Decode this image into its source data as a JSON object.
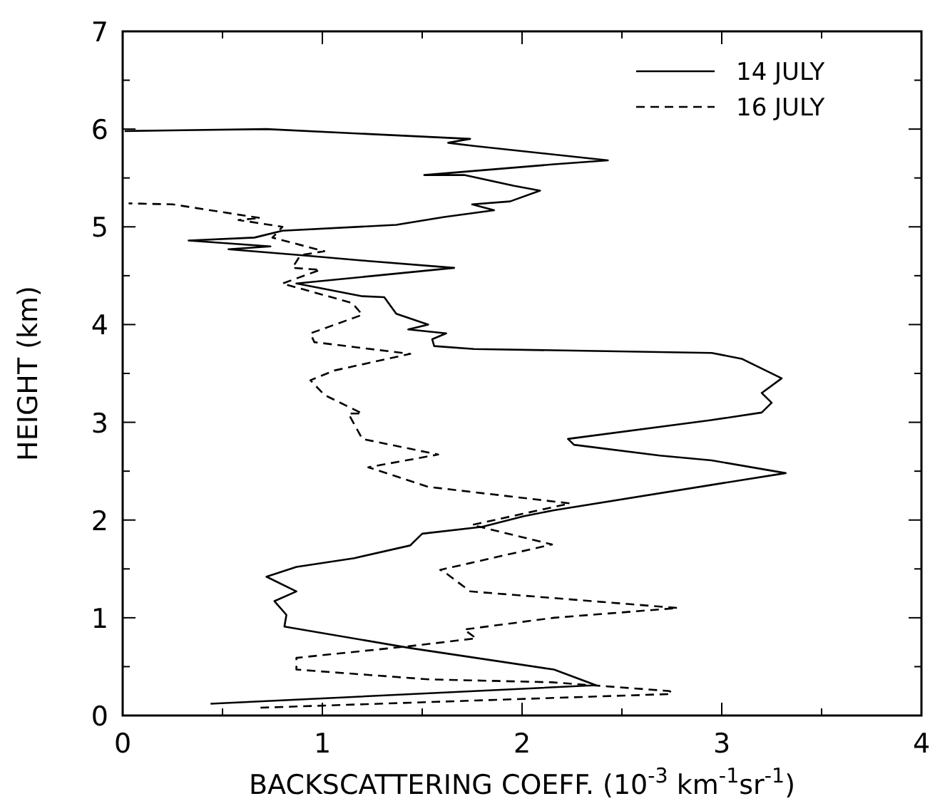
{
  "chart_data": {
    "type": "line",
    "xlabel": "BACKSCATTERING COEFF. (10$^{-3}$ km$^{-1}$sr$^{-1}$)",
    "ylabel": "HEIGHT (km)",
    "xlim": [
      0,
      4
    ],
    "ylim": [
      0,
      7
    ],
    "xticks": [
      0,
      {
        "value": 0.5,
        "label": null
      },
      1,
      {
        "value": 1.5,
        "label": null
      },
      2,
      {
        "value": 2.5,
        "label": null
      },
      3,
      {
        "value": 3.5,
        "label": null
      },
      4
    ],
    "yticks": [
      0,
      {
        "value": 0.5,
        "label": null
      },
      1,
      {
        "value": 1.5,
        "label": null
      },
      2,
      {
        "value": 2.5,
        "label": null
      },
      3,
      {
        "value": 3.5,
        "label": null
      },
      4,
      {
        "value": 4.5,
        "label": null
      },
      5,
      {
        "value": 5.5,
        "label": null
      },
      6,
      {
        "value": 6.5,
        "label": null
      },
      7
    ],
    "grid": false,
    "legend": "top right",
    "marker": "none",
    "series": [
      {
        "name": "14 JULY",
        "color": "#000000",
        "line_style": "solid",
        "x": [
          0.44,
          2.37,
          2.16,
          1.44,
          0.81,
          0.82,
          0.76,
          0.87,
          0.72,
          0.87,
          1.16,
          1.44,
          1.5,
          1.8,
          2.01,
          2.16,
          2.95,
          3.32,
          2.95,
          2.69,
          2.26,
          2.23,
          2.94,
          3.2,
          3.25,
          3.2,
          3.3,
          3.2,
          3.1,
          2.95,
          1.76,
          1.56,
          1.55,
          1.62,
          1.43,
          1.53,
          1.37,
          1.31,
          1.2,
          0.87,
          1.66,
          1.23,
          0.89,
          0.53,
          0.74,
          0.33,
          0.66,
          0.8,
          1.37,
          1.61,
          1.86,
          1.75,
          1.94,
          2.09,
          1.96,
          1.71,
          1.51,
          2.16,
          2.43,
          1.75,
          1.63,
          1.74,
          0.72,
          0.01
        ],
        "values": [
          0.12,
          0.31,
          0.47,
          0.69,
          0.91,
          1.03,
          1.17,
          1.27,
          1.42,
          1.52,
          1.61,
          1.74,
          1.86,
          1.93,
          2.04,
          2.1,
          2.36,
          2.48,
          2.61,
          2.66,
          2.77,
          2.83,
          3.02,
          3.1,
          3.2,
          3.3,
          3.45,
          3.55,
          3.65,
          3.71,
          3.75,
          3.78,
          3.85,
          3.91,
          3.95,
          4.0,
          4.11,
          4.28,
          4.29,
          4.42,
          4.58,
          4.65,
          4.71,
          4.77,
          4.8,
          4.86,
          4.89,
          4.96,
          5.02,
          5.1,
          5.17,
          5.23,
          5.26,
          5.37,
          5.42,
          5.53,
          5.53,
          5.64,
          5.68,
          5.83,
          5.86,
          5.9,
          6.0,
          5.98
        ]
      },
      {
        "name": "16 JULY",
        "color": "#000000",
        "line_style": "dashed",
        "x": [
          0.69,
          2.75,
          2.74,
          2.15,
          1.53,
          0.87,
          0.87,
          1.44,
          1.77,
          1.71,
          2.16,
          2.78,
          1.74,
          1.61,
          1.59,
          2.15,
          1.75,
          2.24,
          1.53,
          1.23,
          1.58,
          1.2,
          1.13,
          1.2,
          1.01,
          0.94,
          1.06,
          1.44,
          0.96,
          0.94,
          1.2,
          1.15,
          0.8,
          0.99,
          0.85,
          0.89,
          1.01,
          0.75,
          0.8,
          0.58,
          0.69,
          0.25,
          0.03
        ],
        "values": [
          0.08,
          0.22,
          0.25,
          0.34,
          0.37,
          0.47,
          0.59,
          0.71,
          0.79,
          0.88,
          1.0,
          1.1,
          1.27,
          1.47,
          1.49,
          1.75,
          1.95,
          2.17,
          2.34,
          2.54,
          2.67,
          2.83,
          3.09,
          3.09,
          3.28,
          3.43,
          3.53,
          3.7,
          3.82,
          3.91,
          4.1,
          4.22,
          4.42,
          4.56,
          4.58,
          4.71,
          4.75,
          4.89,
          5.0,
          5.07,
          5.09,
          5.23,
          5.24
        ]
      }
    ]
  }
}
